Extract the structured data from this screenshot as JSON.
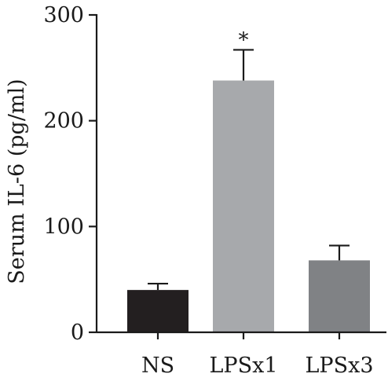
{
  "chart_data": {
    "type": "bar",
    "title": "",
    "xlabel": "",
    "ylabel": "Serum IL-6 (pg/ml)",
    "ylim": [
      0,
      300
    ],
    "yticks": [
      0,
      100,
      200,
      300
    ],
    "categories": [
      "NS",
      "LPSx1",
      "LPSx3"
    ],
    "values": [
      40,
      238,
      68
    ],
    "errors": [
      6,
      29,
      14
    ],
    "bar_colors": [
      "#231f20",
      "#a7a9ac",
      "#808285"
    ],
    "annotations": [
      {
        "category": "LPSx1",
        "text": "*"
      }
    ],
    "grid": false,
    "legend": "none"
  }
}
